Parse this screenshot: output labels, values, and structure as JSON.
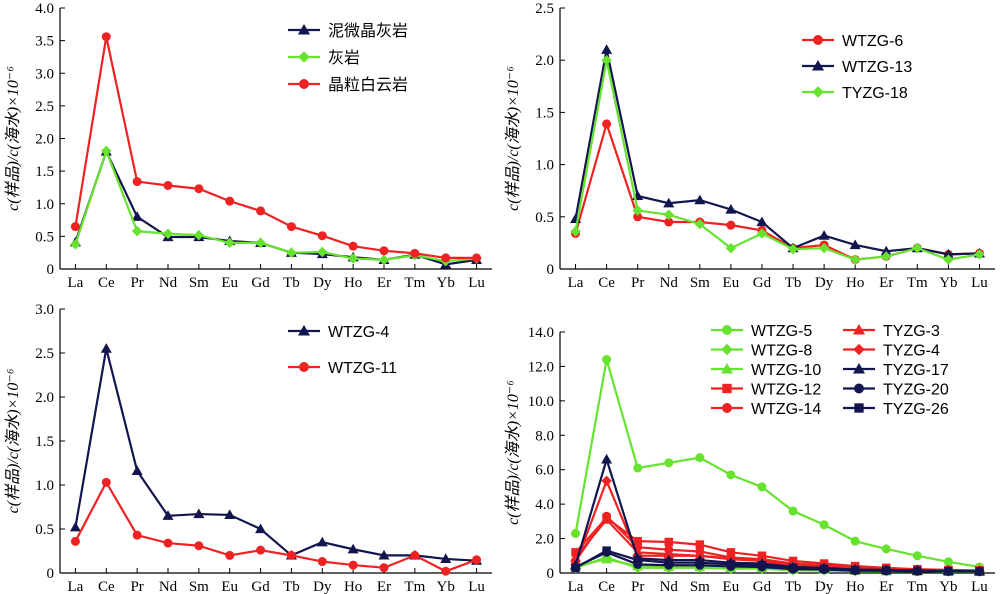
{
  "elements": [
    "La",
    "Ce",
    "Pr",
    "Nd",
    "Sm",
    "Eu",
    "Gd",
    "Tb",
    "Dy",
    "Ho",
    "Er",
    "Tm",
    "Yb",
    "Lu"
  ],
  "colors": {
    "navy": "#13154f",
    "green": "#67e22e",
    "red": "#ee2222",
    "axis": "#000000"
  },
  "chart_data": [
    {
      "type": "line",
      "ylabel": "c(样品)/c(海水)×10⁻⁶",
      "ylim": [
        0,
        4.0
      ],
      "yticks": [
        "0",
        "0.5",
        "1.0",
        "1.5",
        "2.0",
        "2.5",
        "3.0",
        "3.5",
        "4.0"
      ],
      "legend_position": "top-right",
      "series": [
        {
          "name": "泥微晶灰岩",
          "color": "#13154f",
          "marker": "triangle",
          "values": [
            0.41,
            1.8,
            0.8,
            0.49,
            0.49,
            0.43,
            0.4,
            0.25,
            0.23,
            0.18,
            0.14,
            0.22,
            0.07,
            0.14
          ]
        },
        {
          "name": "灰岩",
          "color": "#67e22e",
          "marker": "diamond",
          "values": [
            0.38,
            1.81,
            0.58,
            0.54,
            0.52,
            0.4,
            0.4,
            0.25,
            0.26,
            0.16,
            0.14,
            0.21,
            0.12,
            0.16
          ]
        },
        {
          "name": "晶粒白云岩",
          "color": "#ee2222",
          "marker": "circle",
          "values": [
            0.65,
            3.56,
            1.34,
            1.28,
            1.23,
            1.04,
            0.89,
            0.65,
            0.51,
            0.35,
            0.28,
            0.24,
            0.17,
            0.17
          ]
        }
      ]
    },
    {
      "type": "line",
      "ylabel": "c(样品)/c(海水)×10⁻⁶",
      "ylim": [
        0,
        2.5
      ],
      "yticks": [
        "0",
        "0.5",
        "1.0",
        "1.5",
        "2.0",
        "2.5"
      ],
      "legend_position": "top-right",
      "series": [
        {
          "name": "WTZG-6",
          "color": "#ee2222",
          "marker": "circle",
          "values": [
            0.34,
            1.39,
            0.5,
            0.45,
            0.45,
            0.42,
            0.37,
            0.2,
            0.23,
            0.09,
            0.12,
            0.2,
            0.14,
            0.15
          ]
        },
        {
          "name": "WTZG-13",
          "color": "#13154f",
          "marker": "triangle",
          "values": [
            0.48,
            2.1,
            0.7,
            0.63,
            0.66,
            0.57,
            0.45,
            0.2,
            0.32,
            0.23,
            0.17,
            0.2,
            0.14,
            0.15
          ]
        },
        {
          "name": "TYZG-18",
          "color": "#67e22e",
          "marker": "diamond",
          "values": [
            0.36,
            2.0,
            0.56,
            0.52,
            0.43,
            0.2,
            0.34,
            0.19,
            0.2,
            0.09,
            0.12,
            0.2,
            0.09,
            0.14
          ]
        }
      ]
    },
    {
      "type": "line",
      "ylabel": "c(样品)/c(海水)×10⁻⁶",
      "ylim": [
        0,
        3.0
      ],
      "yticks": [
        "0",
        "0.5",
        "1.0",
        "1.5",
        "2.0",
        "2.5",
        "3.0"
      ],
      "legend_position": "top-right",
      "series": [
        {
          "name": "WTZG-4",
          "color": "#13154f",
          "marker": "triangle",
          "values": [
            0.52,
            2.55,
            1.16,
            0.65,
            0.67,
            0.66,
            0.5,
            0.2,
            0.35,
            0.27,
            0.2,
            0.2,
            0.16,
            0.14
          ]
        },
        {
          "name": "WTZG-11",
          "color": "#ee2222",
          "marker": "circle",
          "values": [
            0.36,
            1.03,
            0.43,
            0.34,
            0.31,
            0.2,
            0.26,
            0.2,
            0.13,
            0.09,
            0.06,
            0.2,
            0.02,
            0.15
          ]
        }
      ]
    },
    {
      "type": "line",
      "ylabel": "c(样品)/c(海水)×10⁻⁶",
      "ylim": [
        0,
        14.0
      ],
      "yticks": [
        "0",
        "2.0",
        "4.0",
        "6.0",
        "8.0",
        "10.0",
        "12.0",
        "14.0"
      ],
      "legend_position": "top-right",
      "series": [
        {
          "name": "WTZG-5",
          "color": "#67e22e",
          "marker": "circle",
          "values": [
            2.3,
            12.4,
            6.1,
            6.4,
            6.7,
            5.7,
            5.0,
            3.6,
            2.8,
            1.85,
            1.4,
            1.0,
            0.65,
            0.35
          ]
        },
        {
          "name": "WTZG-8",
          "color": "#67e22e",
          "marker": "diamond",
          "values": [
            0.3,
            0.9,
            0.3,
            0.3,
            0.3,
            0.25,
            0.25,
            0.15,
            0.15,
            0.1,
            0.1,
            0.1,
            0.08,
            0.08
          ]
        },
        {
          "name": "WTZG-10",
          "color": "#67e22e",
          "marker": "triangle",
          "values": [
            0.4,
            0.8,
            0.4,
            0.35,
            0.35,
            0.3,
            0.3,
            0.2,
            0.2,
            0.12,
            0.1,
            0.1,
            0.08,
            0.08
          ]
        },
        {
          "name": "WTZG-12",
          "color": "#ee2222",
          "marker": "square",
          "values": [
            1.2,
            3.2,
            1.85,
            1.8,
            1.65,
            1.2,
            1.0,
            0.7,
            0.55,
            0.4,
            0.3,
            0.22,
            0.18,
            0.15
          ]
        },
        {
          "name": "WTZG-14",
          "color": "#ee2222",
          "marker": "circle",
          "values": [
            0.7,
            3.3,
            1.5,
            1.35,
            1.25,
            0.9,
            0.8,
            0.55,
            0.45,
            0.3,
            0.25,
            0.2,
            0.15,
            0.12
          ]
        },
        {
          "name": "TYZG-3",
          "color": "#ee2222",
          "marker": "triangle",
          "values": [
            0.9,
            3.1,
            1.2,
            1.1,
            1.0,
            0.85,
            0.7,
            0.5,
            0.4,
            0.28,
            0.22,
            0.18,
            0.14,
            0.12
          ]
        },
        {
          "name": "TYZG-4",
          "color": "#ee2222",
          "marker": "diamond",
          "values": [
            0.5,
            5.35,
            1.0,
            1.0,
            1.0,
            0.8,
            0.7,
            0.45,
            0.35,
            0.25,
            0.2,
            0.15,
            0.12,
            0.1
          ]
        },
        {
          "name": "TYZG-17",
          "color": "#13154f",
          "marker": "triangle",
          "values": [
            0.45,
            6.6,
            0.85,
            0.75,
            0.75,
            0.6,
            0.55,
            0.35,
            0.3,
            0.2,
            0.18,
            0.15,
            0.12,
            0.1
          ]
        },
        {
          "name": "TYZG-20",
          "color": "#13154f",
          "marker": "circle",
          "values": [
            0.35,
            1.2,
            0.5,
            0.45,
            0.45,
            0.38,
            0.35,
            0.22,
            0.2,
            0.14,
            0.12,
            0.1,
            0.09,
            0.08
          ]
        },
        {
          "name": "TYZG-26",
          "color": "#13154f",
          "marker": "square",
          "values": [
            0.3,
            1.3,
            0.75,
            0.6,
            0.6,
            0.5,
            0.45,
            0.3,
            0.25,
            0.18,
            0.15,
            0.12,
            0.1,
            0.09
          ]
        }
      ]
    }
  ]
}
